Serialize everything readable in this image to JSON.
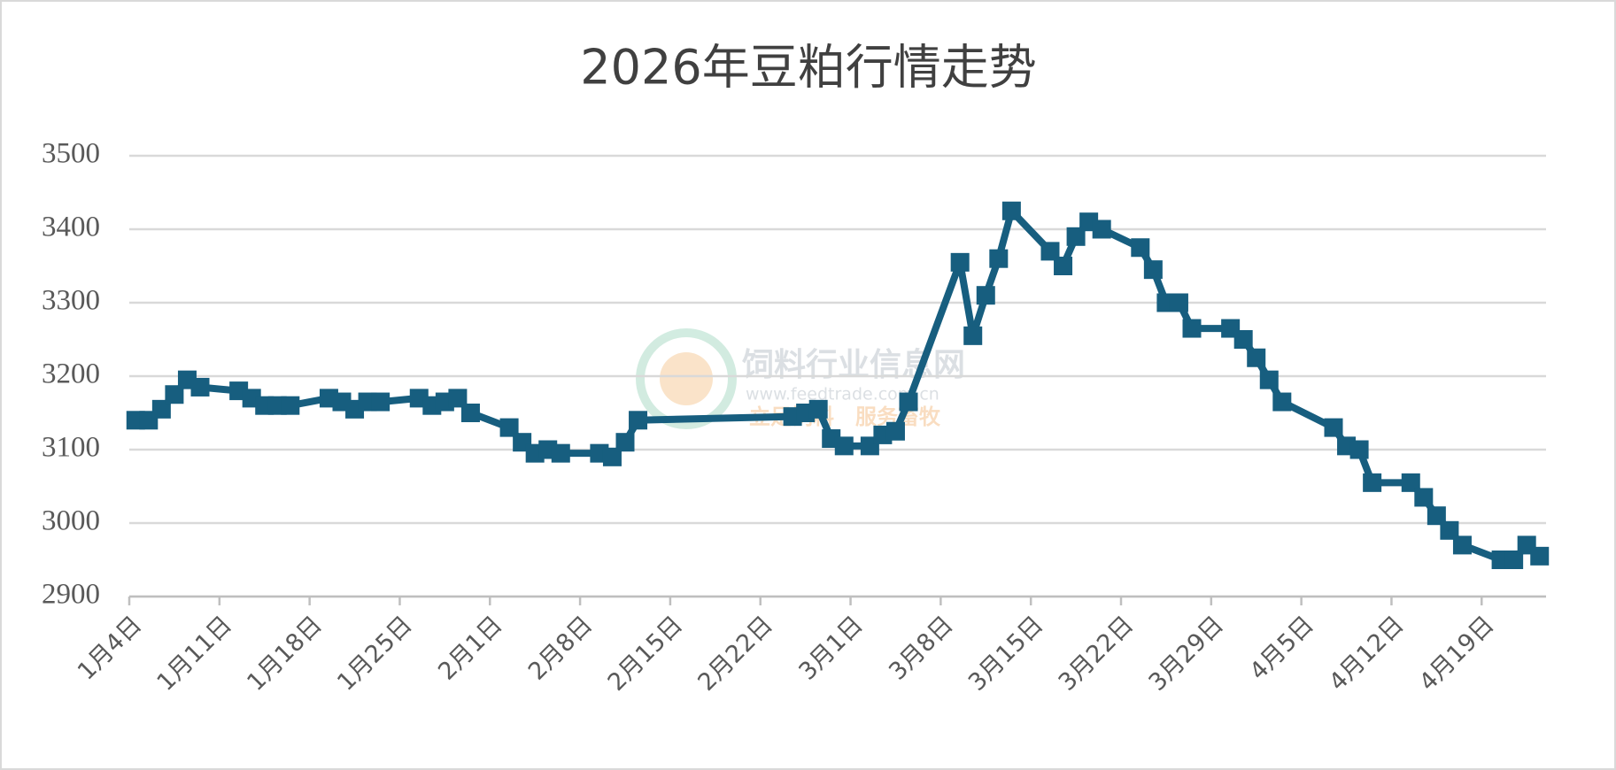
{
  "chart_data": {
    "type": "line",
    "title": "2026年豆粕行情走势",
    "x": [
      "1月4日",
      "1月5日",
      "1月6日",
      "1月7日",
      "1月8日",
      "1月9日",
      "1月12日",
      "1月13日",
      "1月14日",
      "1月15日",
      "1月16日",
      "1月19日",
      "1月20日",
      "1月21日",
      "1月22日",
      "1月23日",
      "1月26日",
      "1月27日",
      "1月28日",
      "1月29日",
      "1月30日",
      "2月2日",
      "2月3日",
      "2月4日",
      "2月5日",
      "2月6日",
      "2月9日",
      "2月10日",
      "2月11日",
      "2月12日",
      "2月24日",
      "2月25日",
      "2月26日",
      "2月27日",
      "2月28日",
      "3月2日",
      "3月3日",
      "3月4日",
      "3月5日",
      "3月9日",
      "3月10日",
      "3月11日",
      "3月12日",
      "3月13日",
      "3月16日",
      "3月17日",
      "3月18日",
      "3月19日",
      "3月20日",
      "3月23日",
      "3月24日",
      "3月25日",
      "3月26日",
      "3月27日",
      "3月30日",
      "3月31日",
      "4月1日",
      "4月2日",
      "4月3日",
      "4月7日",
      "4月8日",
      "4月9日",
      "4月10日",
      "4月13日",
      "4月14日",
      "4月15日",
      "4月16日",
      "4月17日",
      "4月20日",
      "4月21日",
      "4月22日",
      "4月23日"
    ],
    "series": [
      {
        "name": "豆粕",
        "color": "#175e7f",
        "values": [
          3140,
          3140,
          3155,
          3175,
          3195,
          3185,
          3180,
          3170,
          3160,
          3160,
          3160,
          3170,
          3165,
          3155,
          3165,
          3165,
          3170,
          3160,
          3165,
          3170,
          3150,
          3130,
          3110,
          3095,
          3100,
          3095,
          3095,
          3090,
          3110,
          3140,
          3145,
          3150,
          3155,
          3115,
          3105,
          3105,
          3120,
          3125,
          3165,
          3355,
          3255,
          3310,
          3360,
          3425,
          3370,
          3350,
          3390,
          3410,
          3400,
          3375,
          3345,
          3300,
          3300,
          3265,
          3265,
          3250,
          3225,
          3195,
          3165,
          3130,
          3105,
          3100,
          3055,
          3055,
          3035,
          3010,
          2990,
          2970,
          2950,
          2950,
          2970,
          2955
        ]
      }
    ],
    "xlim": [
      "1月4日",
      "4月24日"
    ],
    "xticks": [
      "1月4日",
      "1月11日",
      "1月18日",
      "1月25日",
      "2月1日",
      "2月8日",
      "2月15日",
      "2月22日",
      "3月1日",
      "3月8日",
      "3月15日",
      "3月22日",
      "3月29日",
      "4月5日",
      "4月12日",
      "4月19日"
    ],
    "ylim": [
      2900,
      3500
    ],
    "yticks": [
      2900,
      3000,
      3100,
      3200,
      3300,
      3400,
      3500
    ],
    "grid": true,
    "marker": "square",
    "watermark": {
      "name": "饲料行业信息网",
      "url": "www.feedtrade.com.cn",
      "slogan": "立足饲料　服务畜牧"
    }
  }
}
